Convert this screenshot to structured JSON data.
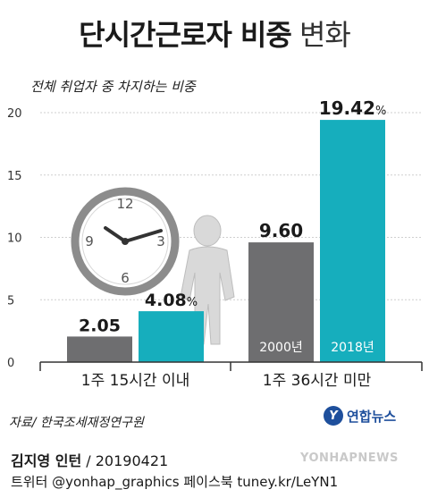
{
  "title": {
    "bold": "단시간근로자 비중",
    "regular": "변화"
  },
  "subtitle": "전체 취업자 중 차지하는 비중",
  "chart_data": {
    "type": "bar",
    "categories": [
      "1주 15시간 이내",
      "1주 36시간 미만"
    ],
    "series": [
      {
        "name": "2000년",
        "values": [
          2.05,
          9.6
        ],
        "labels": [
          "2.05",
          "9.60"
        ],
        "color": "#6e6e70"
      },
      {
        "name": "2018년",
        "values": [
          4.08,
          19.42
        ],
        "labels": [
          "4.08",
          "19.42"
        ],
        "color": "#16aebd"
      }
    ],
    "unit": "%",
    "ylim": [
      0,
      20
    ],
    "yticks": [
      0,
      5,
      10,
      15,
      20
    ],
    "grid": true,
    "legend": "inside-bars"
  },
  "source": "자료/ 한국조세재정연구원",
  "logo": {
    "mark": "Y",
    "text": "연합뉴스"
  },
  "credit": {
    "author": "김지영 인턴",
    "date": "/ 20190421"
  },
  "social": "트위터 @yonhap_graphics 페이스북 tuney.kr/LeYN1",
  "watermark": "YONHAPNEWS",
  "icons": [
    "clock-icon",
    "person-icon"
  ]
}
